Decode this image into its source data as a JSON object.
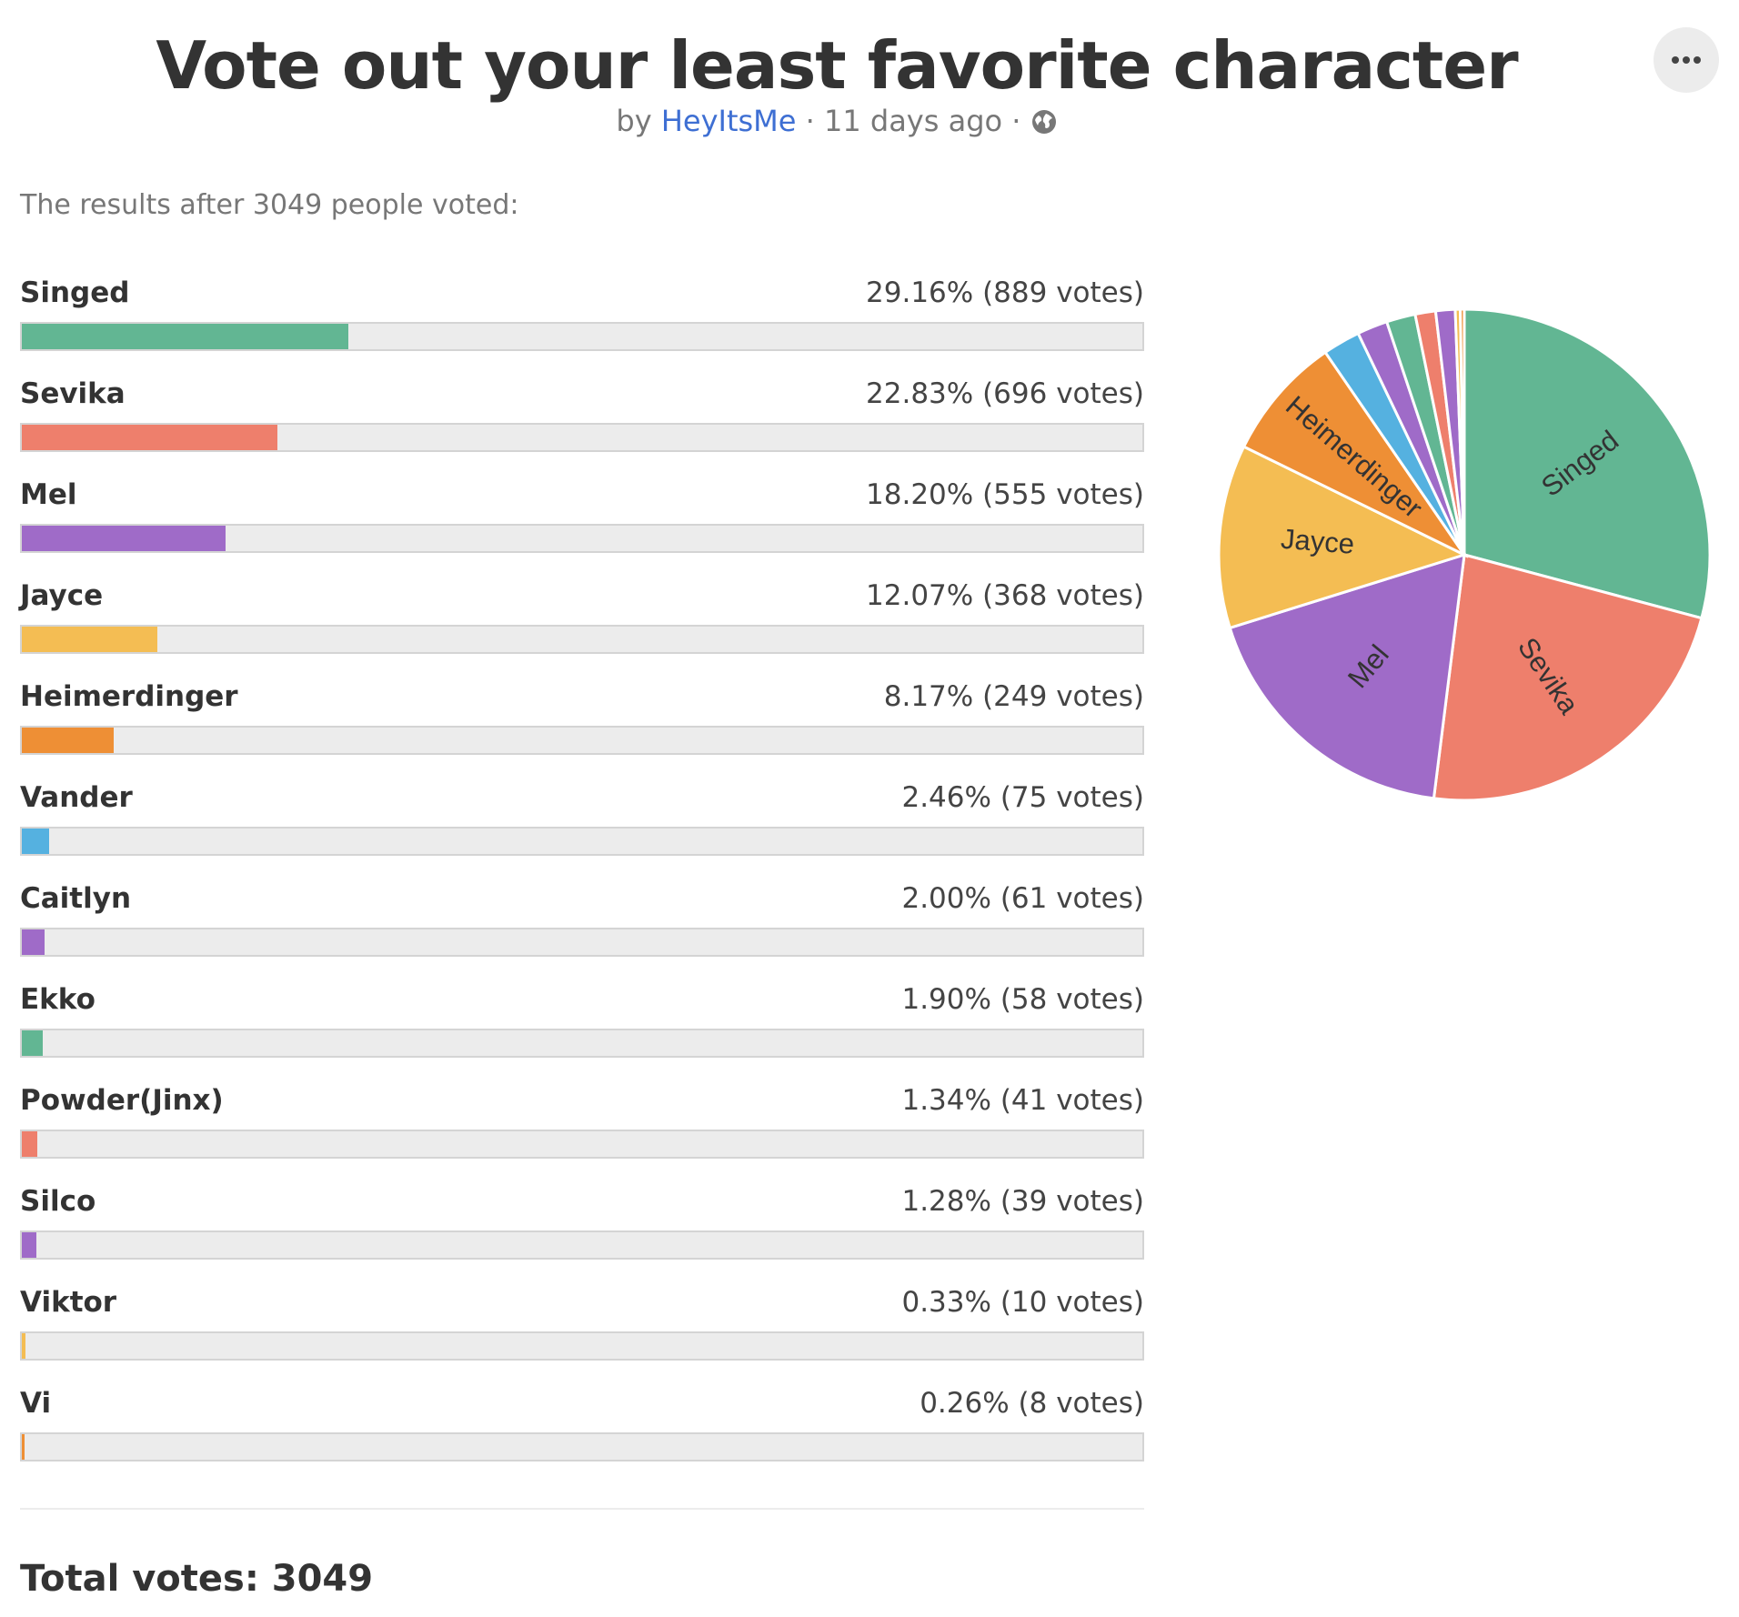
{
  "poll": {
    "title": "Vote out your least favorite character",
    "byline_prefix": "by",
    "author": "HeyItsMe",
    "separator": "·",
    "time_ago": "11 days ago",
    "summary": "The results after 3049 people voted:",
    "total_label": "Total votes: 3049"
  },
  "options": [
    {
      "name": "Singed",
      "stat": "29.16% (889 votes)",
      "percent": 29.16,
      "color": "#62b693"
    },
    {
      "name": "Sevika",
      "stat": "22.83% (696 votes)",
      "percent": 22.83,
      "color": "#ee7f6c"
    },
    {
      "name": "Mel",
      "stat": "18.20% (555 votes)",
      "percent": 18.2,
      "color": "#9f6bc8"
    },
    {
      "name": "Jayce",
      "stat": "12.07% (368 votes)",
      "percent": 12.07,
      "color": "#f4bd53"
    },
    {
      "name": "Heimerdinger",
      "stat": "8.17% (249 votes)",
      "percent": 8.17,
      "color": "#ee8f35"
    },
    {
      "name": "Vander",
      "stat": "2.46% (75 votes)",
      "percent": 2.46,
      "color": "#55b1e0"
    },
    {
      "name": "Caitlyn",
      "stat": "2.00% (61 votes)",
      "percent": 2.0,
      "color": "#9f6bc8"
    },
    {
      "name": "Ekko",
      "stat": "1.90% (58 votes)",
      "percent": 1.9,
      "color": "#62b693"
    },
    {
      "name": "Powder(Jinx)",
      "stat": "1.34% (41 votes)",
      "percent": 1.34,
      "color": "#ee7f6c"
    },
    {
      "name": "Silco",
      "stat": "1.28% (39 votes)",
      "percent": 1.28,
      "color": "#9f6bc8"
    },
    {
      "name": "Viktor",
      "stat": "0.33% (10 votes)",
      "percent": 0.33,
      "color": "#f4bd53"
    },
    {
      "name": "Vi",
      "stat": "0.26% (8 votes)",
      "percent": 0.26,
      "color": "#ee8f35"
    }
  ],
  "chart_data": {
    "type": "pie",
    "categories": [
      "Singed",
      "Sevika",
      "Mel",
      "Jayce",
      "Heimerdinger",
      "Vander",
      "Caitlyn",
      "Ekko",
      "Powder(Jinx)",
      "Silco",
      "Viktor",
      "Vi"
    ],
    "values": [
      889,
      696,
      555,
      368,
      249,
      75,
      61,
      58,
      41,
      39,
      10,
      8
    ],
    "colors": [
      "#62b693",
      "#ee7f6c",
      "#9f6bc8",
      "#f4bd53",
      "#ee8f35",
      "#55b1e0",
      "#9f6bc8",
      "#62b693",
      "#ee7f6c",
      "#9f6bc8",
      "#f4bd53",
      "#ee8f35"
    ],
    "labeled_slices": [
      "Singed",
      "Sevika",
      "Mel",
      "Jayce",
      "Heimerdinger"
    ]
  }
}
